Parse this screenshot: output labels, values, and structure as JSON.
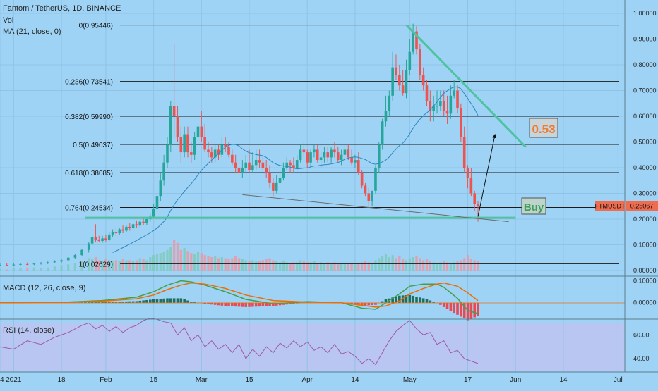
{
  "colors": {
    "background": "#9fd3f5",
    "rsi_band": "#b9c6f1",
    "up": "#26a69a",
    "down": "#ef5350",
    "ma": "#2e86c1",
    "macd": "#43a047",
    "signal": "#ef6c00",
    "trend": "#4fc3a1",
    "rsi": "#9c5aa8",
    "price_tag": "#ef6c4f",
    "fib_line": "#1a1a1a"
  },
  "chart_data": [
    {
      "type": "candlestick",
      "title": "Fantom / TetherUS, 1D, BINANCE",
      "indicator_labels": [
        "Vol",
        "MA (21, close, 0)"
      ],
      "symbol": "FTMUSDT",
      "last_price_label": "0.25067",
      "last_price": 0.25067,
      "y_ticks": [
        "0.00000",
        "0.10000",
        "0.20000",
        "0.30000",
        "0.40000",
        "0.50000",
        "0.60000",
        "0.70000",
        "0.80000",
        "0.90000",
        "1.00000"
      ],
      "y_tick_values": [
        0.0,
        0.1,
        0.2,
        0.3,
        0.4,
        0.5,
        0.6,
        0.7,
        0.8,
        0.9,
        1.0
      ],
      "ylim": [
        0.0,
        1.0
      ],
      "x_ticks": [
        "4",
        "2021",
        "18",
        "Feb",
        "15",
        "Mar",
        "15",
        "Apr",
        "14",
        "May",
        "17",
        "Jun",
        "14",
        "Jul"
      ],
      "x_tick_days": [
        0,
        4,
        18,
        31,
        45,
        59,
        73,
        90,
        104,
        120,
        137,
        151,
        165,
        181
      ],
      "xlim_days": [
        0,
        183
      ],
      "candles": {
        "day": [
          0,
          2,
          4,
          6,
          8,
          10,
          12,
          14,
          16,
          18,
          20,
          22,
          24,
          26,
          27,
          28,
          29,
          30,
          31,
          32,
          33,
          34,
          35,
          36,
          37,
          38,
          39,
          40,
          41,
          42,
          43,
          44,
          45,
          46,
          47,
          48,
          49,
          50,
          51,
          52,
          53,
          54,
          55,
          56,
          57,
          58,
          59,
          60,
          61,
          62,
          63,
          64,
          65,
          66,
          67,
          68,
          69,
          70,
          71,
          72,
          73,
          74,
          75,
          76,
          77,
          78,
          79,
          80,
          81,
          82,
          83,
          84,
          85,
          86,
          87,
          88,
          89,
          90,
          91,
          92,
          93,
          94,
          95,
          96,
          97,
          98,
          99,
          100,
          101,
          102,
          103,
          104,
          105,
          106,
          107,
          108,
          109,
          110,
          111,
          112,
          113,
          114,
          115,
          116,
          117,
          118,
          119,
          120,
          121,
          122,
          123,
          124,
          125,
          126,
          127,
          128,
          129,
          130,
          131,
          132,
          133,
          134,
          135,
          136,
          137,
          138,
          139,
          140
        ],
        "open": [
          0.021,
          0.022,
          0.02,
          0.023,
          0.025,
          0.024,
          0.027,
          0.029,
          0.032,
          0.035,
          0.04,
          0.05,
          0.06,
          0.08,
          0.105,
          0.13,
          0.12,
          0.115,
          0.125,
          0.12,
          0.14,
          0.15,
          0.145,
          0.16,
          0.155,
          0.17,
          0.165,
          0.18,
          0.175,
          0.19,
          0.185,
          0.2,
          0.21,
          0.24,
          0.29,
          0.35,
          0.42,
          0.49,
          0.64,
          0.6,
          0.52,
          0.46,
          0.53,
          0.46,
          0.45,
          0.52,
          0.56,
          0.52,
          0.47,
          0.46,
          0.44,
          0.47,
          0.45,
          0.49,
          0.48,
          0.45,
          0.42,
          0.4,
          0.38,
          0.4,
          0.42,
          0.39,
          0.41,
          0.43,
          0.42,
          0.4,
          0.38,
          0.34,
          0.31,
          0.34,
          0.36,
          0.4,
          0.42,
          0.41,
          0.4,
          0.43,
          0.47,
          0.46,
          0.42,
          0.46,
          0.47,
          0.43,
          0.44,
          0.46,
          0.44,
          0.47,
          0.46,
          0.43,
          0.45,
          0.47,
          0.44,
          0.42,
          0.43,
          0.38,
          0.33,
          0.3,
          0.27,
          0.31,
          0.4,
          0.49,
          0.58,
          0.62,
          0.68,
          0.79,
          0.76,
          0.72,
          0.69,
          0.78,
          0.85,
          0.93,
          0.86,
          0.76,
          0.72,
          0.66,
          0.62,
          0.64,
          0.64,
          0.66,
          0.62,
          0.61,
          0.68,
          0.7,
          0.63,
          0.52,
          0.4,
          0.36,
          0.3,
          0.26
        ],
        "high": [
          0.03,
          0.028,
          0.028,
          0.03,
          0.031,
          0.03,
          0.033,
          0.035,
          0.04,
          0.045,
          0.052,
          0.065,
          0.085,
          0.11,
          0.14,
          0.18,
          0.135,
          0.135,
          0.14,
          0.15,
          0.16,
          0.17,
          0.165,
          0.175,
          0.175,
          0.185,
          0.185,
          0.195,
          0.195,
          0.205,
          0.205,
          0.22,
          0.26,
          0.3,
          0.38,
          0.45,
          0.52,
          0.66,
          0.88,
          0.64,
          0.56,
          0.56,
          0.56,
          0.5,
          0.54,
          0.6,
          0.62,
          0.57,
          0.5,
          0.48,
          0.49,
          0.49,
          0.52,
          0.52,
          0.5,
          0.47,
          0.45,
          0.43,
          0.43,
          0.45,
          0.47,
          0.46,
          0.47,
          0.47,
          0.45,
          0.43,
          0.41,
          0.36,
          0.37,
          0.39,
          0.42,
          0.44,
          0.43,
          0.44,
          0.45,
          0.49,
          0.5,
          0.47,
          0.47,
          0.49,
          0.49,
          0.46,
          0.48,
          0.48,
          0.48,
          0.5,
          0.48,
          0.47,
          0.49,
          0.49,
          0.47,
          0.45,
          0.46,
          0.39,
          0.34,
          0.32,
          0.31,
          0.41,
          0.5,
          0.59,
          0.68,
          0.7,
          0.85,
          0.84,
          0.8,
          0.78,
          0.82,
          0.9,
          0.96,
          0.95,
          0.88,
          0.79,
          0.74,
          0.7,
          0.68,
          0.7,
          0.7,
          0.7,
          0.68,
          0.72,
          0.74,
          0.72,
          0.65,
          0.56,
          0.41,
          0.4,
          0.31,
          0.27
        ],
        "low": [
          0.018,
          0.018,
          0.017,
          0.02,
          0.021,
          0.021,
          0.023,
          0.025,
          0.028,
          0.03,
          0.035,
          0.045,
          0.055,
          0.07,
          0.1,
          0.11,
          0.11,
          0.108,
          0.112,
          0.115,
          0.13,
          0.135,
          0.138,
          0.145,
          0.148,
          0.155,
          0.158,
          0.165,
          0.168,
          0.175,
          0.178,
          0.19,
          0.205,
          0.23,
          0.27,
          0.33,
          0.4,
          0.46,
          0.52,
          0.5,
          0.42,
          0.44,
          0.44,
          0.42,
          0.43,
          0.5,
          0.5,
          0.46,
          0.44,
          0.42,
          0.42,
          0.43,
          0.44,
          0.46,
          0.44,
          0.41,
          0.38,
          0.36,
          0.36,
          0.38,
          0.38,
          0.38,
          0.39,
          0.4,
          0.39,
          0.36,
          0.32,
          0.29,
          0.3,
          0.33,
          0.35,
          0.39,
          0.38,
          0.38,
          0.39,
          0.42,
          0.44,
          0.4,
          0.4,
          0.44,
          0.42,
          0.4,
          0.42,
          0.42,
          0.42,
          0.44,
          0.42,
          0.41,
          0.43,
          0.43,
          0.41,
          0.4,
          0.37,
          0.32,
          0.29,
          0.25,
          0.25,
          0.3,
          0.38,
          0.47,
          0.56,
          0.6,
          0.66,
          0.74,
          0.7,
          0.68,
          0.67,
          0.76,
          0.84,
          0.84,
          0.74,
          0.7,
          0.64,
          0.58,
          0.58,
          0.61,
          0.62,
          0.6,
          0.57,
          0.59,
          0.67,
          0.61,
          0.5,
          0.38,
          0.32,
          0.29,
          0.23,
          0.19
        ],
        "close": [
          0.022,
          0.02,
          0.023,
          0.025,
          0.024,
          0.027,
          0.029,
          0.032,
          0.035,
          0.04,
          0.05,
          0.06,
          0.08,
          0.105,
          0.13,
          0.12,
          0.115,
          0.125,
          0.12,
          0.14,
          0.15,
          0.145,
          0.16,
          0.155,
          0.17,
          0.165,
          0.18,
          0.175,
          0.19,
          0.185,
          0.2,
          0.21,
          0.24,
          0.29,
          0.35,
          0.42,
          0.49,
          0.64,
          0.6,
          0.52,
          0.46,
          0.53,
          0.46,
          0.45,
          0.52,
          0.56,
          0.52,
          0.47,
          0.46,
          0.44,
          0.47,
          0.45,
          0.49,
          0.48,
          0.45,
          0.42,
          0.4,
          0.38,
          0.4,
          0.42,
          0.39,
          0.41,
          0.43,
          0.42,
          0.4,
          0.38,
          0.34,
          0.31,
          0.34,
          0.36,
          0.4,
          0.42,
          0.41,
          0.4,
          0.43,
          0.47,
          0.46,
          0.42,
          0.46,
          0.47,
          0.43,
          0.44,
          0.46,
          0.44,
          0.47,
          0.46,
          0.43,
          0.45,
          0.47,
          0.44,
          0.42,
          0.43,
          0.38,
          0.33,
          0.3,
          0.27,
          0.31,
          0.4,
          0.49,
          0.58,
          0.62,
          0.68,
          0.79,
          0.76,
          0.72,
          0.69,
          0.78,
          0.85,
          0.93,
          0.86,
          0.76,
          0.72,
          0.66,
          0.62,
          0.64,
          0.64,
          0.66,
          0.62,
          0.61,
          0.68,
          0.7,
          0.63,
          0.52,
          0.4,
          0.36,
          0.3,
          0.26,
          0.251
        ],
        "volume": [
          0.02,
          0.01,
          0.02,
          0.02,
          0.02,
          0.03,
          0.02,
          0.03,
          0.04,
          0.05,
          0.06,
          0.07,
          0.09,
          0.12,
          0.11,
          0.13,
          0.1,
          0.09,
          0.11,
          0.1,
          0.09,
          0.1,
          0.09,
          0.11,
          0.1,
          0.1,
          0.09,
          0.1,
          0.12,
          0.11,
          0.1,
          0.13,
          0.15,
          0.16,
          0.17,
          0.18,
          0.2,
          0.23,
          0.3,
          0.27,
          0.2,
          0.22,
          0.19,
          0.17,
          0.16,
          0.18,
          0.17,
          0.15,
          0.14,
          0.13,
          0.14,
          0.12,
          0.13,
          0.12,
          0.11,
          0.12,
          0.14,
          0.12,
          0.11,
          0.1,
          0.09,
          0.1,
          0.09,
          0.09,
          0.1,
          0.11,
          0.12,
          0.1,
          0.09,
          0.08,
          0.09,
          0.08,
          0.07,
          0.08,
          0.08,
          0.1,
          0.09,
          0.08,
          0.08,
          0.09,
          0.07,
          0.08,
          0.07,
          0.08,
          0.07,
          0.08,
          0.07,
          0.07,
          0.06,
          0.07,
          0.07,
          0.06,
          0.07,
          0.08,
          0.09,
          0.08,
          0.07,
          0.1,
          0.12,
          0.14,
          0.16,
          0.13,
          0.15,
          0.12,
          0.14,
          0.11,
          0.1,
          0.12,
          0.13,
          0.14,
          0.12,
          0.1,
          0.11,
          0.09,
          0.08,
          0.07,
          0.08,
          0.09,
          0.08,
          0.07,
          0.08,
          0.09,
          0.1,
          0.12,
          0.15,
          0.11,
          0.1,
          0.09
        ]
      },
      "fib_levels": [
        {
          "label": "0(0.95446)",
          "value": 0.95446
        },
        {
          "label": "0.236(0.73541)",
          "value": 0.73541
        },
        {
          "label": "0.382(0.59990)",
          "value": 0.5999
        },
        {
          "label": "0.5(0.49037)",
          "value": 0.49037
        },
        {
          "label": "0.618(0.38085)",
          "value": 0.38085
        },
        {
          "label": "0.764(0.24534)",
          "value": 0.24534
        },
        {
          "label": "1(0.02629)",
          "value": 0.02629
        }
      ],
      "annotations": {
        "target_label": "0.53",
        "buy_label": "Buy",
        "support_level": 0.205,
        "support_x": [
          25,
          151
        ],
        "resistance": {
          "x": [
            119,
            154
          ],
          "y": [
            0.955,
            0.48
          ]
        },
        "wedge": {
          "x": [
            71,
            149
          ],
          "y": [
            0.295,
            0.19
          ]
        },
        "arrow": {
          "x": [
            140,
            145
          ],
          "y": [
            0.21,
            0.53
          ]
        }
      }
    },
    {
      "type": "line",
      "title": "MACD (12, 26, close, 9)",
      "y_ticks": [
        "0.00000",
        "0.10000"
      ],
      "y_tick_values": [
        0.0,
        0.1
      ],
      "ylim": [
        -0.062,
        0.108
      ],
      "series": [
        {
          "name": "macd",
          "x": [
            0,
            20,
            30,
            40,
            45,
            49,
            53,
            56,
            60,
            66,
            72,
            80,
            90,
            100,
            106,
            110,
            113,
            117,
            120,
            124,
            128,
            130,
            134,
            137,
            140
          ],
          "y": [
            0.0,
            0.003,
            0.01,
            0.025,
            0.05,
            0.08,
            0.1,
            0.095,
            0.08,
            0.05,
            0.015,
            -0.005,
            0.005,
            0.0,
            -0.025,
            -0.03,
            0.0,
            0.04,
            0.075,
            0.085,
            0.085,
            0.07,
            0.02,
            -0.035,
            -0.05
          ]
        },
        {
          "name": "signal",
          "x": [
            0,
            20,
            30,
            40,
            45,
            49,
            53,
            56,
            60,
            66,
            72,
            80,
            90,
            100,
            106,
            110,
            113,
            117,
            120,
            124,
            128,
            130,
            134,
            137,
            140
          ],
          "y": [
            0.0,
            0.002,
            0.007,
            0.018,
            0.035,
            0.06,
            0.08,
            0.09,
            0.085,
            0.065,
            0.035,
            0.01,
            0.003,
            0.0,
            -0.012,
            -0.02,
            -0.015,
            0.008,
            0.04,
            0.065,
            0.085,
            0.09,
            0.075,
            0.045,
            0.01
          ]
        }
      ]
    },
    {
      "type": "line",
      "title": "RSI (14, close)",
      "y_ticks": [
        "60.00",
        "40.00"
      ],
      "y_tick_values": [
        60,
        40
      ],
      "ylim": [
        30,
        72
      ],
      "band": [
        30,
        70
      ],
      "series": [
        {
          "name": "rsi",
          "x": [
            0,
            4,
            8,
            12,
            16,
            20,
            24,
            26,
            28,
            30,
            32,
            34,
            36,
            38,
            40,
            42,
            44,
            46,
            48,
            50,
            52,
            54,
            56,
            58,
            60,
            62,
            64,
            66,
            68,
            70,
            72,
            74,
            76,
            78,
            80,
            82,
            84,
            86,
            88,
            90,
            92,
            94,
            96,
            98,
            100,
            102,
            104,
            106,
            108,
            110,
            112,
            114,
            116,
            118,
            120,
            122,
            124,
            126,
            128,
            130,
            132,
            134,
            136,
            138,
            140
          ],
          "y": [
            50,
            48,
            55,
            52,
            58,
            62,
            68,
            70,
            65,
            68,
            63,
            67,
            62,
            66,
            68,
            72,
            74,
            73,
            71,
            70,
            60,
            66,
            55,
            60,
            50,
            55,
            48,
            52,
            45,
            52,
            40,
            48,
            42,
            50,
            45,
            53,
            49,
            55,
            50,
            54,
            47,
            50,
            45,
            52,
            44,
            46,
            42,
            36,
            40,
            35,
            45,
            55,
            63,
            68,
            72,
            65,
            60,
            62,
            52,
            55,
            45,
            47,
            40,
            38,
            36
          ]
        }
      ]
    }
  ]
}
